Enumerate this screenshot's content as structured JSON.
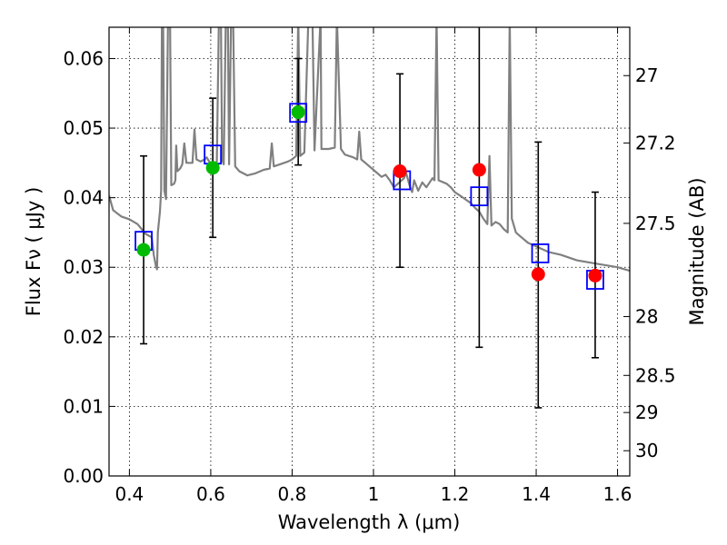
{
  "chart_data": {
    "type": "scatter",
    "xlabel": "Wavelength  λ (μm)",
    "ylabel": "Flux  Fν  ( μJy )",
    "y2label": "Magnitude (AB)",
    "xlim": [
      0.35,
      1.63
    ],
    "ylim": [
      0.0,
      0.0645
    ],
    "x_ticks": [
      0.4,
      0.6,
      0.8,
      1.0,
      1.2,
      1.4,
      1.6
    ],
    "x_tick_labels": [
      "0.4",
      "0.6",
      "0.8",
      "1",
      "1.2",
      "1.4",
      "1.6"
    ],
    "y_ticks": [
      0.0,
      0.01,
      0.02,
      0.03,
      0.04,
      0.05,
      0.06
    ],
    "y_tick_labels": [
      "0.00",
      "0.01",
      "0.02",
      "0.03",
      "0.04",
      "0.05",
      "0.06"
    ],
    "mag_ticks": [
      {
        "mag": 27,
        "label": "27"
      },
      {
        "mag": 27.2,
        "label": "27.2"
      },
      {
        "mag": 27.5,
        "label": "27.5"
      },
      {
        "mag": 28,
        "label": "28"
      },
      {
        "mag": 28.5,
        "label": "28.5"
      },
      {
        "mag": 29,
        "label": "29"
      },
      {
        "mag": 30,
        "label": "30"
      }
    ],
    "grid": true,
    "colors": {
      "spectrum": "#808080",
      "model_points": "#0000ff",
      "green_points": "#00bb00",
      "red_points": "#ff0000",
      "errorbars": "#000000"
    },
    "series": [
      {
        "kind": "spectrum",
        "points": [
          [
            0.35,
            0.0403
          ],
          [
            0.36,
            0.0382
          ],
          [
            0.38,
            0.0373
          ],
          [
            0.4,
            0.0369
          ],
          [
            0.42,
            0.0362
          ],
          [
            0.44,
            0.0348
          ],
          [
            0.455,
            0.0343
          ],
          [
            0.46,
            0.0318
          ],
          [
            0.465,
            0.0302
          ],
          [
            0.468,
            0.0297
          ],
          [
            0.47,
            0.035
          ],
          [
            0.475,
            0.038
          ],
          [
            0.478,
            0.041
          ],
          [
            0.48,
            0.066
          ],
          [
            0.483,
            0.066
          ],
          [
            0.486,
            0.041
          ],
          [
            0.49,
            0.0398
          ],
          [
            0.495,
            0.066
          ],
          [
            0.5,
            0.066
          ],
          [
            0.503,
            0.0418
          ],
          [
            0.51,
            0.042
          ],
          [
            0.513,
            0.0425
          ],
          [
            0.515,
            0.0475
          ],
          [
            0.518,
            0.0438
          ],
          [
            0.525,
            0.0442
          ],
          [
            0.53,
            0.0448
          ],
          [
            0.535,
            0.0478
          ],
          [
            0.54,
            0.045
          ],
          [
            0.55,
            0.045
          ],
          [
            0.555,
            0.045
          ],
          [
            0.56,
            0.0498
          ],
          [
            0.565,
            0.0455
          ],
          [
            0.575,
            0.0452
          ],
          [
            0.585,
            0.0455
          ],
          [
            0.59,
            0.0458
          ],
          [
            0.595,
            0.0453
          ],
          [
            0.6,
            0.0448
          ],
          [
            0.605,
            0.0443
          ],
          [
            0.615,
            0.0452
          ],
          [
            0.62,
            0.066
          ],
          [
            0.625,
            0.066
          ],
          [
            0.628,
            0.0455
          ],
          [
            0.632,
            0.0448
          ],
          [
            0.637,
            0.066
          ],
          [
            0.642,
            0.066
          ],
          [
            0.645,
            0.0448
          ],
          [
            0.65,
            0.066
          ],
          [
            0.655,
            0.066
          ],
          [
            0.66,
            0.0445
          ],
          [
            0.67,
            0.0438
          ],
          [
            0.69,
            0.0432
          ],
          [
            0.71,
            0.0435
          ],
          [
            0.73,
            0.044
          ],
          [
            0.745,
            0.0442
          ],
          [
            0.75,
            0.0478
          ],
          [
            0.755,
            0.0445
          ],
          [
            0.77,
            0.0448
          ],
          [
            0.79,
            0.0452
          ],
          [
            0.8,
            0.0455
          ],
          [
            0.81,
            0.046
          ],
          [
            0.815,
            0.066
          ],
          [
            0.82,
            0.046
          ],
          [
            0.83,
            0.0465
          ],
          [
            0.84,
            0.066
          ],
          [
            0.85,
            0.066
          ],
          [
            0.855,
            0.0468
          ],
          [
            0.87,
            0.066
          ],
          [
            0.872,
            0.047
          ],
          [
            0.89,
            0.047
          ],
          [
            0.905,
            0.0472
          ],
          [
            0.91,
            0.066
          ],
          [
            0.92,
            0.047
          ],
          [
            0.93,
            0.0462
          ],
          [
            0.95,
            0.0458
          ],
          [
            0.96,
            0.0455
          ],
          [
            0.965,
            0.0495
          ],
          [
            0.97,
            0.0455
          ],
          [
            0.98,
            0.045
          ],
          [
            1.0,
            0.044
          ],
          [
            1.02,
            0.043
          ],
          [
            1.03,
            0.0433
          ],
          [
            1.04,
            0.0425
          ],
          [
            1.05,
            0.0415
          ],
          [
            1.06,
            0.042
          ],
          [
            1.075,
            0.0428
          ],
          [
            1.08,
            0.0436
          ],
          [
            1.09,
            0.0415
          ],
          [
            1.095,
            0.0408
          ],
          [
            1.1,
            0.0425
          ],
          [
            1.11,
            0.041
          ],
          [
            1.12,
            0.0422
          ],
          [
            1.13,
            0.0415
          ],
          [
            1.145,
            0.0428
          ],
          [
            1.15,
            0.0425
          ],
          [
            1.155,
            0.066
          ],
          [
            1.16,
            0.0425
          ],
          [
            1.18,
            0.042
          ],
          [
            1.19,
            0.0415
          ],
          [
            1.2,
            0.0408
          ],
          [
            1.22,
            0.04
          ],
          [
            1.24,
            0.0392
          ],
          [
            1.25,
            0.0385
          ],
          [
            1.26,
            0.038
          ],
          [
            1.27,
            0.037
          ],
          [
            1.28,
            0.0362
          ],
          [
            1.285,
            0.046
          ],
          [
            1.29,
            0.036
          ],
          [
            1.3,
            0.0365
          ],
          [
            1.31,
            0.0362
          ],
          [
            1.32,
            0.0355
          ],
          [
            1.33,
            0.035
          ],
          [
            1.335,
            0.066
          ],
          [
            1.34,
            0.037
          ],
          [
            1.35,
            0.035
          ],
          [
            1.36,
            0.0345
          ],
          [
            1.38,
            0.0335
          ],
          [
            1.4,
            0.033
          ],
          [
            1.43,
            0.0322
          ],
          [
            1.46,
            0.0318
          ],
          [
            1.5,
            0.031
          ],
          [
            1.55,
            0.0305
          ],
          [
            1.6,
            0.03
          ],
          [
            1.63,
            0.0295
          ]
        ]
      },
      {
        "kind": "model",
        "marker": "square",
        "points": [
          {
            "x": 0.435,
            "y": 0.0338
          },
          {
            "x": 0.605,
            "y": 0.0462
          },
          {
            "x": 0.815,
            "y": 0.0522
          },
          {
            "x": 1.07,
            "y": 0.0425
          },
          {
            "x": 1.26,
            "y": 0.0402
          },
          {
            "x": 1.41,
            "y": 0.032
          },
          {
            "x": 1.545,
            "y": 0.0282
          }
        ]
      },
      {
        "kind": "observed",
        "marker": "circle",
        "points": [
          {
            "x": 0.435,
            "y": 0.0325,
            "err_lo": 0.019,
            "err_hi": 0.046,
            "color": "green"
          },
          {
            "x": 0.605,
            "y": 0.0443,
            "err_lo": 0.0343,
            "err_hi": 0.0543,
            "color": "green"
          },
          {
            "x": 0.815,
            "y": 0.0523,
            "err_lo": 0.0447,
            "err_hi": 0.06,
            "color": "green"
          },
          {
            "x": 1.065,
            "y": 0.0438,
            "err_lo": 0.03,
            "err_hi": 0.0578,
            "color": "red"
          },
          {
            "x": 1.26,
            "y": 0.044,
            "err_lo": 0.0185,
            "err_hi": 0.066,
            "color": "red"
          },
          {
            "x": 1.405,
            "y": 0.029,
            "err_lo": 0.0098,
            "err_hi": 0.048,
            "color": "red"
          },
          {
            "x": 1.545,
            "y": 0.0288,
            "err_lo": 0.017,
            "err_hi": 0.0408,
            "color": "red"
          }
        ]
      }
    ]
  }
}
